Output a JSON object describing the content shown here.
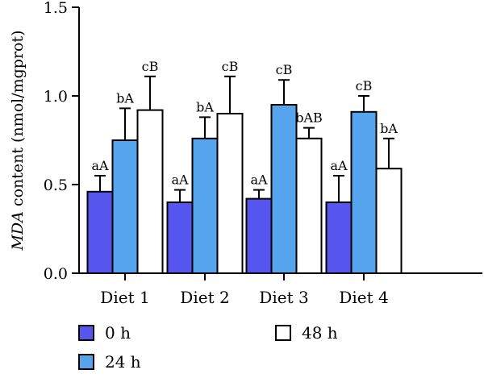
{
  "chart_data": {
    "type": "bar",
    "title": "",
    "xlabel": "",
    "ylabel": "MDA content (nmol/mgprot)",
    "ylabel_italic_part": "MDA",
    "ylabel_rest": " content (nmol/mgprot)",
    "ylim": [
      0,
      1.5
    ],
    "yticks": [
      "0.0",
      "0.5",
      "1.0",
      "1.5"
    ],
    "ytick_values": [
      0,
      0.5,
      1.0,
      1.5
    ],
    "grid": false,
    "legend_placement": "bottom",
    "categories": [
      "Diet 1",
      "Diet 2",
      "Diet 3",
      "Diet 4"
    ],
    "series": [
      {
        "name": "0 h",
        "color": "#5656ee",
        "values": [
          0.46,
          0.4,
          0.42,
          0.4
        ],
        "errors": [
          0.09,
          0.07,
          0.05,
          0.15
        ],
        "labels": [
          "aA",
          "aA",
          "aA",
          "aA"
        ]
      },
      {
        "name": "24 h",
        "color": "#56a4ee",
        "values": [
          0.75,
          0.76,
          0.95,
          0.91
        ],
        "errors": [
          0.18,
          0.12,
          0.14,
          0.09
        ],
        "labels": [
          "bA",
          "bA",
          "cB",
          "cB"
        ]
      },
      {
        "name": "48 h",
        "color": "#ffffff",
        "values": [
          0.92,
          0.9,
          0.76,
          0.59
        ],
        "errors": [
          0.19,
          0.21,
          0.06,
          0.17
        ],
        "labels": [
          "cB",
          "cB",
          "bAB",
          "bA"
        ]
      }
    ]
  }
}
